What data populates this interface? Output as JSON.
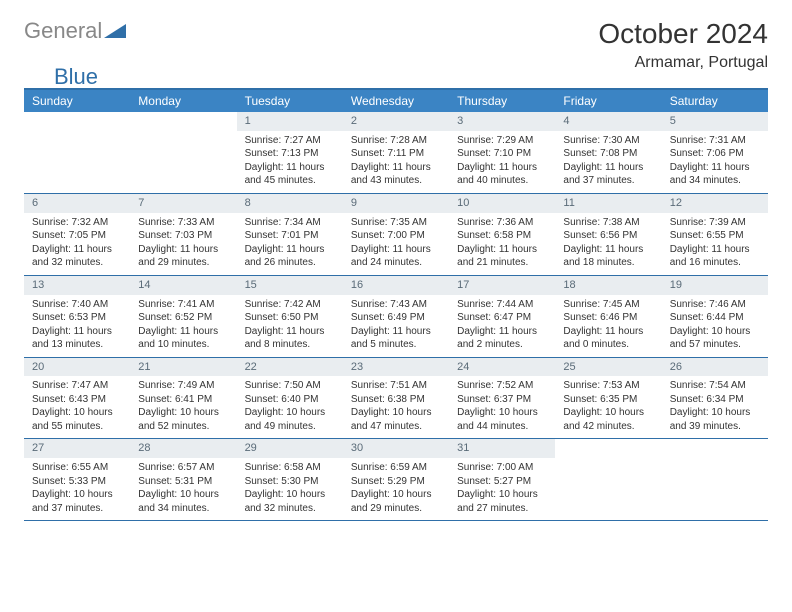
{
  "brand": {
    "part1": "General",
    "part2": "Blue"
  },
  "title": "October 2024",
  "location": "Armamar, Portugal",
  "colors": {
    "header_bg": "#3b84c4",
    "border": "#2f6fa8",
    "daynum_bg": "#e9edf0",
    "daynum_color": "#5a6b78",
    "text": "#333333",
    "logo_gray": "#888888",
    "logo_blue": "#2f6fa8"
  },
  "dayNames": [
    "Sunday",
    "Monday",
    "Tuesday",
    "Wednesday",
    "Thursday",
    "Friday",
    "Saturday"
  ],
  "weeks": [
    [
      null,
      null,
      {
        "n": "1",
        "sr": "7:27 AM",
        "ss": "7:13 PM",
        "dl": "11 hours and 45 minutes."
      },
      {
        "n": "2",
        "sr": "7:28 AM",
        "ss": "7:11 PM",
        "dl": "11 hours and 43 minutes."
      },
      {
        "n": "3",
        "sr": "7:29 AM",
        "ss": "7:10 PM",
        "dl": "11 hours and 40 minutes."
      },
      {
        "n": "4",
        "sr": "7:30 AM",
        "ss": "7:08 PM",
        "dl": "11 hours and 37 minutes."
      },
      {
        "n": "5",
        "sr": "7:31 AM",
        "ss": "7:06 PM",
        "dl": "11 hours and 34 minutes."
      }
    ],
    [
      {
        "n": "6",
        "sr": "7:32 AM",
        "ss": "7:05 PM",
        "dl": "11 hours and 32 minutes."
      },
      {
        "n": "7",
        "sr": "7:33 AM",
        "ss": "7:03 PM",
        "dl": "11 hours and 29 minutes."
      },
      {
        "n": "8",
        "sr": "7:34 AM",
        "ss": "7:01 PM",
        "dl": "11 hours and 26 minutes."
      },
      {
        "n": "9",
        "sr": "7:35 AM",
        "ss": "7:00 PM",
        "dl": "11 hours and 24 minutes."
      },
      {
        "n": "10",
        "sr": "7:36 AM",
        "ss": "6:58 PM",
        "dl": "11 hours and 21 minutes."
      },
      {
        "n": "11",
        "sr": "7:38 AM",
        "ss": "6:56 PM",
        "dl": "11 hours and 18 minutes."
      },
      {
        "n": "12",
        "sr": "7:39 AM",
        "ss": "6:55 PM",
        "dl": "11 hours and 16 minutes."
      }
    ],
    [
      {
        "n": "13",
        "sr": "7:40 AM",
        "ss": "6:53 PM",
        "dl": "11 hours and 13 minutes."
      },
      {
        "n": "14",
        "sr": "7:41 AM",
        "ss": "6:52 PM",
        "dl": "11 hours and 10 minutes."
      },
      {
        "n": "15",
        "sr": "7:42 AM",
        "ss": "6:50 PM",
        "dl": "11 hours and 8 minutes."
      },
      {
        "n": "16",
        "sr": "7:43 AM",
        "ss": "6:49 PM",
        "dl": "11 hours and 5 minutes."
      },
      {
        "n": "17",
        "sr": "7:44 AM",
        "ss": "6:47 PM",
        "dl": "11 hours and 2 minutes."
      },
      {
        "n": "18",
        "sr": "7:45 AM",
        "ss": "6:46 PM",
        "dl": "11 hours and 0 minutes."
      },
      {
        "n": "19",
        "sr": "7:46 AM",
        "ss": "6:44 PM",
        "dl": "10 hours and 57 minutes."
      }
    ],
    [
      {
        "n": "20",
        "sr": "7:47 AM",
        "ss": "6:43 PM",
        "dl": "10 hours and 55 minutes."
      },
      {
        "n": "21",
        "sr": "7:49 AM",
        "ss": "6:41 PM",
        "dl": "10 hours and 52 minutes."
      },
      {
        "n": "22",
        "sr": "7:50 AM",
        "ss": "6:40 PM",
        "dl": "10 hours and 49 minutes."
      },
      {
        "n": "23",
        "sr": "7:51 AM",
        "ss": "6:38 PM",
        "dl": "10 hours and 47 minutes."
      },
      {
        "n": "24",
        "sr": "7:52 AM",
        "ss": "6:37 PM",
        "dl": "10 hours and 44 minutes."
      },
      {
        "n": "25",
        "sr": "7:53 AM",
        "ss": "6:35 PM",
        "dl": "10 hours and 42 minutes."
      },
      {
        "n": "26",
        "sr": "7:54 AM",
        "ss": "6:34 PM",
        "dl": "10 hours and 39 minutes."
      }
    ],
    [
      {
        "n": "27",
        "sr": "6:55 AM",
        "ss": "5:33 PM",
        "dl": "10 hours and 37 minutes."
      },
      {
        "n": "28",
        "sr": "6:57 AM",
        "ss": "5:31 PM",
        "dl": "10 hours and 34 minutes."
      },
      {
        "n": "29",
        "sr": "6:58 AM",
        "ss": "5:30 PM",
        "dl": "10 hours and 32 minutes."
      },
      {
        "n": "30",
        "sr": "6:59 AM",
        "ss": "5:29 PM",
        "dl": "10 hours and 29 minutes."
      },
      {
        "n": "31",
        "sr": "7:00 AM",
        "ss": "5:27 PM",
        "dl": "10 hours and 27 minutes."
      },
      null,
      null
    ]
  ],
  "labels": {
    "sunrise": "Sunrise: ",
    "sunset": "Sunset: ",
    "daylight": "Daylight: "
  }
}
